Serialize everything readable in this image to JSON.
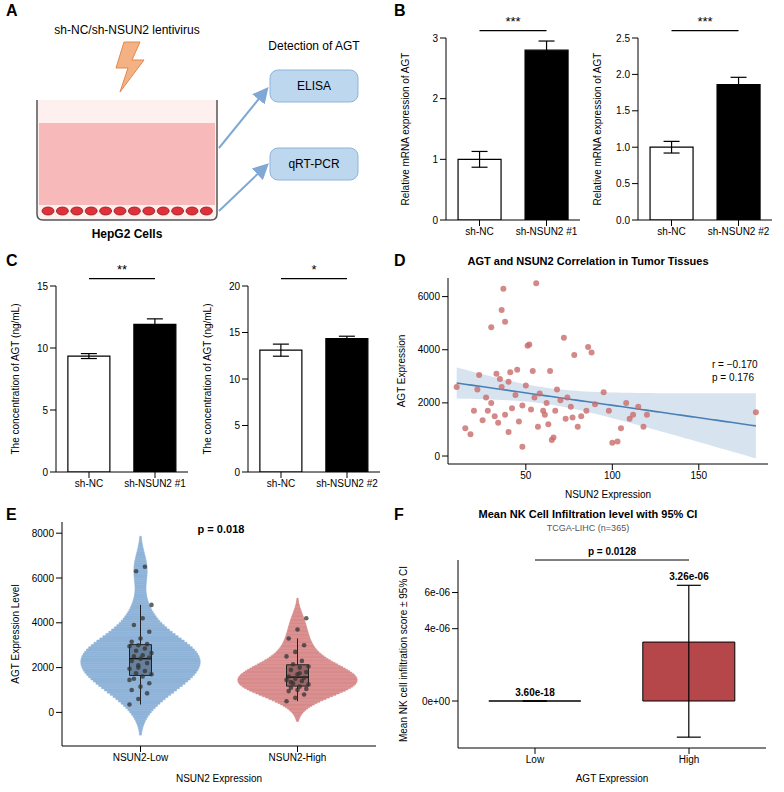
{
  "panel_labels": [
    "A",
    "B",
    "C",
    "D",
    "E",
    "F"
  ],
  "diagram": {
    "virus_label": "sh-NC/sh-NSUN2 lentivirus",
    "detection_label": "Detection of AGT",
    "methods": [
      "ELISA",
      "qRT-PCR"
    ],
    "cells_label": "HepG2 Cells"
  },
  "chart_data": [
    {
      "type": "bar",
      "ylabel": "Relative mRNA expression of AGT",
      "categories": [
        "sh-NC",
        "sh-NSUN2 #1"
      ],
      "values": [
        1.0,
        2.8
      ],
      "errors": [
        0.13,
        0.15
      ],
      "colors": [
        "#ffffff",
        "#000000"
      ],
      "ylim": [
        0,
        3
      ],
      "yticks": [
        0,
        1,
        2,
        3
      ],
      "significance": "***"
    },
    {
      "type": "bar",
      "ylabel": "Relative mRNA expression of AGT",
      "categories": [
        "sh-NC",
        "sh-NSUN2 #2"
      ],
      "values": [
        1.0,
        1.86
      ],
      "errors": [
        0.08,
        0.1
      ],
      "colors": [
        "#ffffff",
        "#000000"
      ],
      "ylim": [
        0,
        2.5
      ],
      "yticks": [
        {
          "value": 0,
          "label": "0.0"
        },
        {
          "value": 0.5,
          "label": "0.5"
        },
        {
          "value": 1,
          "label": "1.0"
        },
        {
          "value": 1.5,
          "label": "1.5"
        },
        {
          "value": 2,
          "label": "2.0"
        },
        {
          "value": 2.5,
          "label": "2.5"
        }
      ],
      "significance": "***"
    },
    {
      "type": "bar",
      "ylabel": "The concentration of AGT (ng/mL)",
      "categories": [
        "sh-NC",
        "sh-NSUN2 #1"
      ],
      "values": [
        9.35,
        11.9
      ],
      "errors": [
        0.2,
        0.45
      ],
      "colors": [
        "#ffffff",
        "#000000"
      ],
      "ylim": [
        0,
        15
      ],
      "yticks": [
        0,
        5,
        10,
        15
      ],
      "significance": "**"
    },
    {
      "type": "bar",
      "ylabel": "The concentration of AGT (ng/mL)",
      "categories": [
        "sh-NC",
        "sh-NSUN2 #2"
      ],
      "values": [
        13.1,
        14.35
      ],
      "errors": [
        0.65,
        0.25
      ],
      "colors": [
        "#ffffff",
        "#000000"
      ],
      "ylim": [
        0,
        20
      ],
      "yticks": [
        0,
        5,
        10,
        15,
        20
      ],
      "significance": "*"
    },
    {
      "type": "scatter",
      "title": "AGT and NSUN2 Correlation in Tumor Tissues",
      "xlabel": "NSUN2 Expression",
      "ylabel": "AGT Expression",
      "x": [
        10,
        15,
        18,
        20,
        22,
        23,
        25,
        27,
        28,
        30,
        30,
        32,
        33,
        34,
        35,
        36,
        36,
        37,
        38,
        38,
        40,
        40,
        41,
        42,
        44,
        45,
        46,
        48,
        48,
        50,
        51,
        52,
        53,
        54,
        55,
        56,
        57,
        58,
        60,
        61,
        62,
        63,
        64,
        65,
        66,
        67,
        68,
        70,
        72,
        73,
        74,
        76,
        77,
        78,
        80,
        82,
        85,
        86,
        88,
        90,
        95,
        98,
        100,
        103,
        105,
        108,
        110,
        112,
        115,
        118,
        120,
        183
      ],
      "values": [
        2600,
        1050,
        820,
        1700,
        2500,
        3050,
        1350,
        2200,
        1700,
        4850,
        2000,
        1500,
        3100,
        1250,
        2900,
        2600,
        5500,
        6300,
        5050,
        1550,
        2800,
        900,
        3150,
        1800,
        2300,
        3250,
        1300,
        350,
        1900,
        2650,
        4150,
        4200,
        1750,
        3200,
        2200,
        6500,
        1100,
        2350,
        1700,
        1550,
        2000,
        1200,
        3200,
        600,
        700,
        1700,
        2500,
        2100,
        4450,
        1400,
        2200,
        1850,
        1450,
        3800,
        1100,
        1500,
        1700,
        4100,
        3900,
        1950,
        2400,
        1700,
        500,
        550,
        1050,
        2000,
        1400,
        1550,
        1850,
        1100,
        1550,
        1650
      ],
      "color": "#c96b6b",
      "xlim": [
        5,
        190
      ],
      "xticks": [
        50,
        100,
        150
      ],
      "ylim": [
        -300,
        6700
      ],
      "yticks": [
        0,
        2000,
        4000,
        6000
      ],
      "annotations": [
        "r = −0.170",
        "p = 0.176"
      ]
    },
    {
      "type": "violin",
      "xlabel": "NSUN2 Expression",
      "ylabel": "AGT Expression Level",
      "annotations": [
        "p = 0.018"
      ],
      "categories": [
        "NSUN2-Low",
        "NSUN2-High"
      ],
      "values": [
        [
          350,
          600,
          850,
          1000,
          1150,
          1300,
          1500,
          1600,
          1700,
          1750,
          1850,
          1950,
          2100,
          2200,
          2300,
          2400,
          2450,
          2500,
          2550,
          2650,
          2750,
          2850,
          2950,
          3000,
          3050,
          3150,
          3300,
          3600,
          3900,
          4200,
          4800,
          6300,
          6500,
          1450,
          2000
        ],
        [
          500,
          650,
          800,
          950,
          1000,
          1050,
          1100,
          1150,
          1250,
          1300,
          1400,
          1450,
          1500,
          1550,
          1600,
          1700,
          1800,
          1900,
          2000,
          2050,
          2150,
          2300,
          2500,
          2700,
          3000,
          3300,
          3700,
          4200,
          1350,
          1750
        ]
      ],
      "colors": [
        "#8fb3d9",
        "#d98c8c"
      ],
      "ylim": [
        -1500,
        8500
      ],
      "yticks": [
        0,
        2000,
        4000,
        6000,
        8000
      ]
    },
    {
      "type": "bar",
      "title": "Mean NK Cell Infiltration level with 95% CI",
      "subtitle": "TCGA-LIHC (n=365)",
      "xlabel": "AGT Expression",
      "ylabel": "Mean NK cell infiltration score ± 95% CI",
      "categories": [
        "Low",
        "High"
      ],
      "values": [
        3.6e-18,
        3.26e-06
      ],
      "value_labels": [
        "3.60e-18",
        "3.26e-06"
      ],
      "ci_low": [
        3.6e-18,
        -2e-06
      ],
      "ci_high": [
        3.6e-18,
        6.4e-06
      ],
      "colors": [
        "#d9d9d9",
        "#b5474b"
      ],
      "data_labels": true,
      "ylim": [
        -2.6e-06,
        7.8e-06
      ],
      "yticks": [
        {
          "value": 0,
          "label": "0e+00"
        },
        {
          "value": 4e-06,
          "label": "4e-06"
        },
        {
          "value": 6e-06,
          "label": "6e-06"
        }
      ],
      "annotations": [
        "p = 0.0128"
      ]
    }
  ]
}
